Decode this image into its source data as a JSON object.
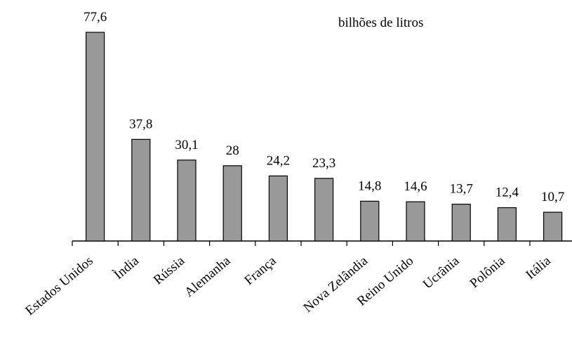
{
  "chart_data": {
    "type": "bar",
    "annotation": "bilhões de litros",
    "categories": [
      "Estados Unidos",
      "Ìndia",
      "Rússia",
      "Alemanha",
      "França",
      null,
      "Nova Zelândia",
      "Reino Unido",
      "Ucrânia",
      "Polônia",
      "Itália"
    ],
    "values": [
      77.6,
      37.8,
      30.1,
      28,
      24.2,
      23.3,
      14.8,
      14.6,
      13.7,
      12.4,
      10.7
    ],
    "value_labels": [
      "77,6",
      "37,8",
      "30,1",
      "28",
      "24,2",
      "23,3",
      "14,8",
      "14,6",
      "13,7",
      "12,4",
      "10,7"
    ],
    "color": "#999999"
  }
}
